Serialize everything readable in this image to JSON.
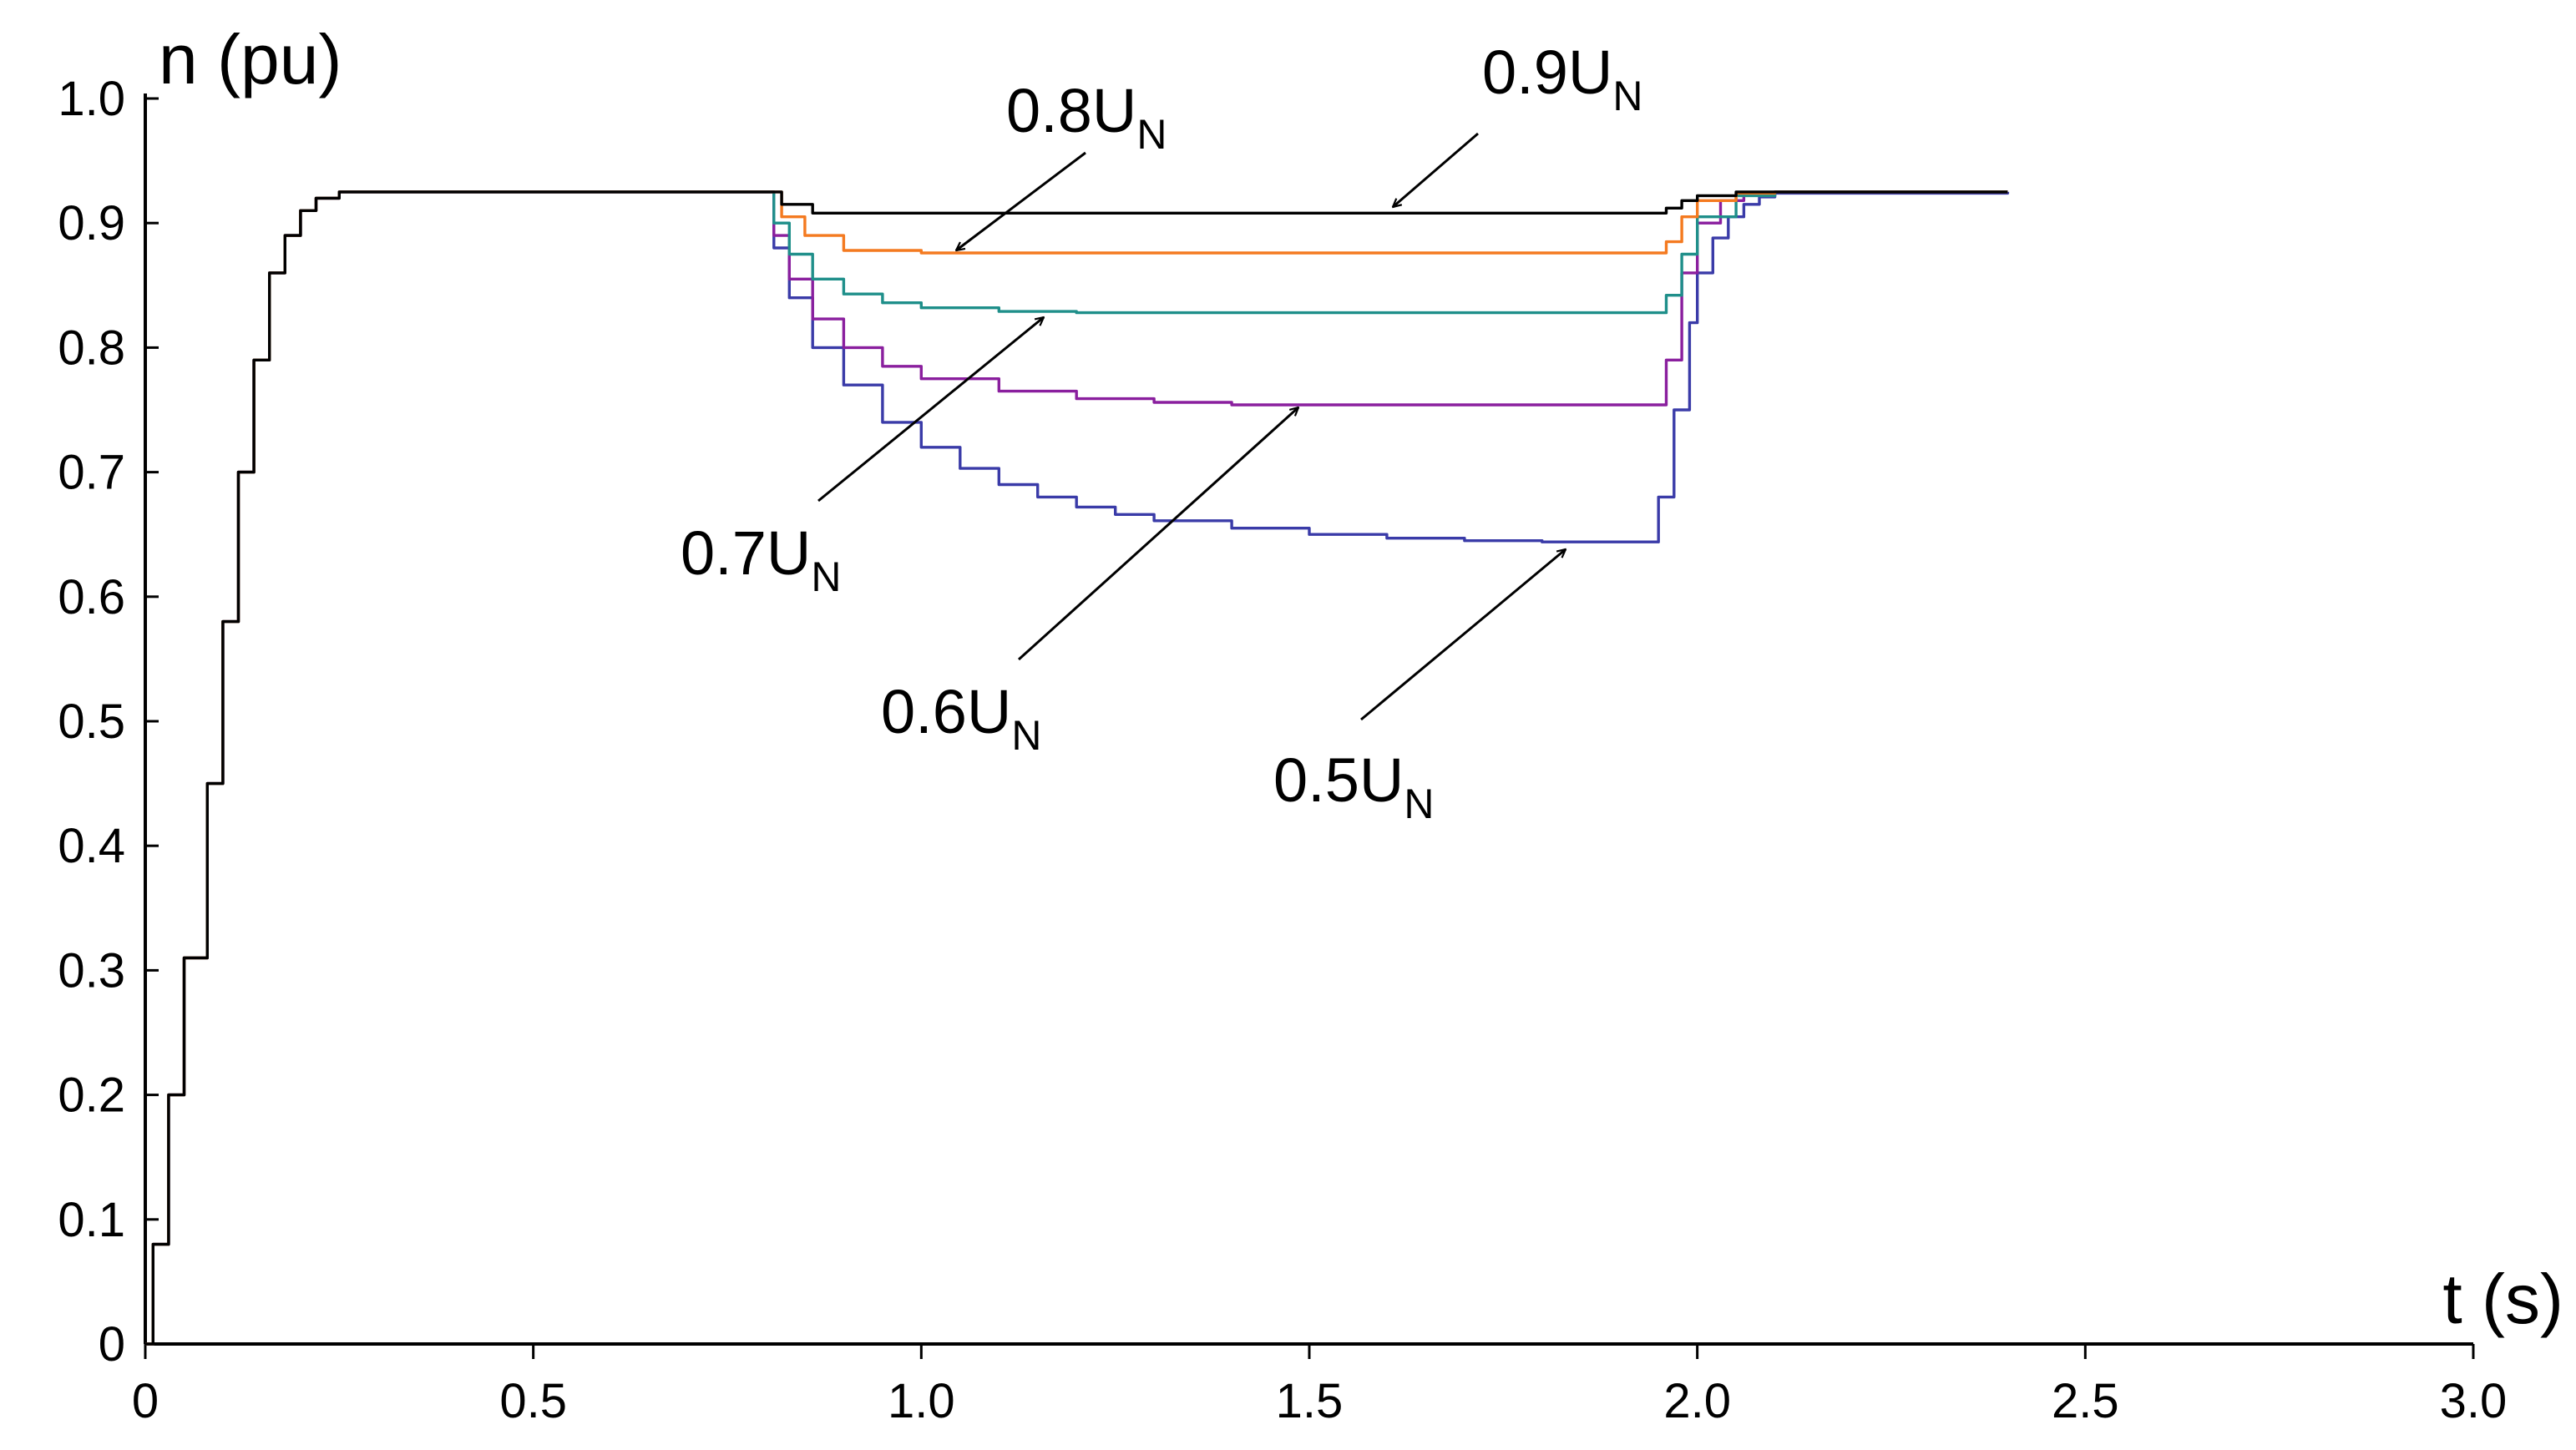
{
  "chart_data": {
    "type": "line",
    "xlabel": "t (s)",
    "ylabel": "n (pu)",
    "xlim": [
      0,
      3.0
    ],
    "ylim": [
      0,
      1.0
    ],
    "x_ticks": [
      "0",
      "0.5",
      "1.0",
      "1.5",
      "2.0",
      "2.5",
      "3.0"
    ],
    "y_ticks": [
      "0",
      "0.1",
      "0.2",
      "0.3",
      "0.4",
      "0.5",
      "0.6",
      "0.7",
      "0.8",
      "0.9",
      "1.0"
    ],
    "grid": false,
    "legend": "none",
    "series": [
      {
        "name": "0.9UN",
        "color": "#000000",
        "x": [
          0,
          0.01,
          0.03,
          0.05,
          0.08,
          0.1,
          0.12,
          0.14,
          0.16,
          0.18,
          0.2,
          0.22,
          0.25,
          0.3,
          0.8,
          0.82,
          0.86,
          1.0,
          1.5,
          1.94,
          1.96,
          1.98,
          2.0,
          2.05,
          2.1,
          2.4
        ],
        "y": [
          0,
          0.08,
          0.2,
          0.31,
          0.45,
          0.58,
          0.7,
          0.79,
          0.86,
          0.89,
          0.91,
          0.92,
          0.925,
          0.925,
          0.925,
          0.915,
          0.908,
          0.908,
          0.908,
          0.908,
          0.912,
          0.918,
          0.922,
          0.925,
          0.925,
          0.925
        ]
      },
      {
        "name": "0.8UN",
        "color": "#f47a20",
        "x": [
          0,
          0.01,
          0.03,
          0.05,
          0.08,
          0.1,
          0.12,
          0.14,
          0.16,
          0.18,
          0.2,
          0.22,
          0.25,
          0.3,
          0.8,
          0.82,
          0.85,
          0.9,
          1.0,
          1.5,
          1.94,
          1.96,
          1.98,
          2.0,
          2.05,
          2.1,
          2.4
        ],
        "y": [
          0,
          0.08,
          0.2,
          0.31,
          0.45,
          0.58,
          0.7,
          0.79,
          0.86,
          0.89,
          0.91,
          0.92,
          0.925,
          0.925,
          0.925,
          0.905,
          0.89,
          0.878,
          0.876,
          0.876,
          0.876,
          0.885,
          0.905,
          0.918,
          0.924,
          0.925,
          0.925
        ]
      },
      {
        "name": "0.7UN",
        "color": "#1f8f8a",
        "x": [
          0,
          0.01,
          0.03,
          0.05,
          0.08,
          0.1,
          0.12,
          0.14,
          0.16,
          0.18,
          0.2,
          0.22,
          0.25,
          0.3,
          0.8,
          0.81,
          0.83,
          0.86,
          0.9,
          0.95,
          1.0,
          1.1,
          1.2,
          1.94,
          1.96,
          1.98,
          2.0,
          2.05,
          2.1,
          2.4
        ],
        "y": [
          0,
          0.08,
          0.2,
          0.31,
          0.45,
          0.58,
          0.7,
          0.79,
          0.86,
          0.89,
          0.91,
          0.92,
          0.925,
          0.925,
          0.925,
          0.9,
          0.875,
          0.855,
          0.843,
          0.836,
          0.832,
          0.829,
          0.828,
          0.828,
          0.842,
          0.875,
          0.905,
          0.922,
          0.925,
          0.925
        ]
      },
      {
        "name": "0.6UN",
        "color": "#8a1f9e",
        "x": [
          0,
          0.01,
          0.03,
          0.05,
          0.08,
          0.1,
          0.12,
          0.14,
          0.16,
          0.18,
          0.2,
          0.22,
          0.25,
          0.3,
          0.8,
          0.81,
          0.83,
          0.86,
          0.9,
          0.95,
          1.0,
          1.1,
          1.2,
          1.3,
          1.4,
          1.94,
          1.96,
          1.98,
          2.0,
          2.03,
          2.06,
          2.1,
          2.4
        ],
        "y": [
          0,
          0.08,
          0.2,
          0.31,
          0.45,
          0.58,
          0.7,
          0.79,
          0.86,
          0.89,
          0.91,
          0.92,
          0.925,
          0.925,
          0.925,
          0.89,
          0.855,
          0.823,
          0.8,
          0.785,
          0.775,
          0.765,
          0.759,
          0.756,
          0.754,
          0.754,
          0.79,
          0.86,
          0.9,
          0.918,
          0.923,
          0.925,
          0.925
        ]
      },
      {
        "name": "0.5UN",
        "color": "#3a3ba8",
        "x": [
          0,
          0.01,
          0.03,
          0.05,
          0.08,
          0.1,
          0.12,
          0.14,
          0.16,
          0.18,
          0.2,
          0.22,
          0.25,
          0.3,
          0.8,
          0.81,
          0.83,
          0.86,
          0.9,
          0.95,
          1.0,
          1.05,
          1.1,
          1.15,
          1.2,
          1.25,
          1.3,
          1.4,
          1.5,
          1.6,
          1.7,
          1.8,
          1.94,
          1.95,
          1.97,
          1.99,
          2.0,
          2.02,
          2.04,
          2.06,
          2.08,
          2.1,
          2.4
        ],
        "y": [
          0,
          0.08,
          0.2,
          0.31,
          0.45,
          0.58,
          0.7,
          0.79,
          0.86,
          0.89,
          0.91,
          0.92,
          0.925,
          0.925,
          0.925,
          0.88,
          0.84,
          0.8,
          0.77,
          0.74,
          0.72,
          0.703,
          0.69,
          0.68,
          0.672,
          0.666,
          0.661,
          0.655,
          0.65,
          0.647,
          0.645,
          0.644,
          0.644,
          0.68,
          0.75,
          0.82,
          0.86,
          0.888,
          0.905,
          0.915,
          0.921,
          0.924,
          0.925
        ]
      }
    ],
    "annotations": [
      {
        "text": "0.9U",
        "sub": "N",
        "series": "0.9UN"
      },
      {
        "text": "0.8U",
        "sub": "N",
        "series": "0.8UN"
      },
      {
        "text": "0.7U",
        "sub": "N",
        "series": "0.7UN"
      },
      {
        "text": "0.6U",
        "sub": "N",
        "series": "0.6UN"
      },
      {
        "text": "0.5U",
        "sub": "N",
        "series": "0.5UN"
      }
    ]
  }
}
